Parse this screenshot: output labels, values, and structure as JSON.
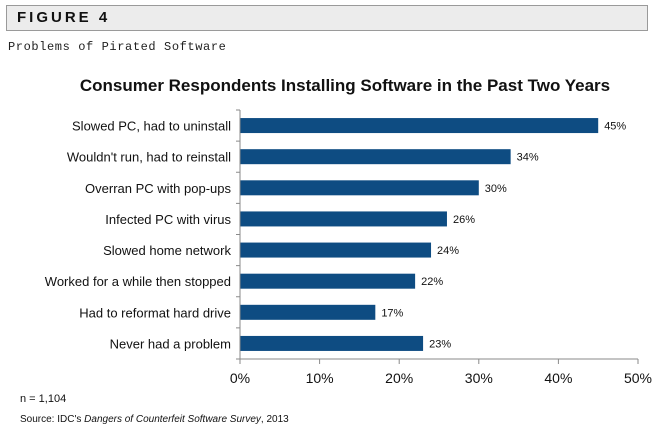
{
  "figure_label": "FIGURE 4",
  "figure_subtitle": "Problems of Pirated Software",
  "chart_data": {
    "type": "bar",
    "orientation": "horizontal",
    "title": "Consumer Respondents Installing Software in the Past Two Years",
    "categories": [
      "Slowed PC, had to uninstall",
      "Wouldn't run, had to reinstall",
      "Overran PC with pop-ups",
      "Infected PC with virus",
      "Slowed home network",
      "Worked for a while then stopped",
      "Had to reformat hard drive",
      "Never had a problem"
    ],
    "values": [
      45,
      34,
      30,
      26,
      24,
      22,
      17,
      23
    ],
    "value_labels": [
      "45%",
      "34%",
      "30%",
      "26%",
      "24%",
      "22%",
      "17%",
      "23%"
    ],
    "x_ticks": [
      0,
      10,
      20,
      30,
      40,
      50
    ],
    "x_tick_labels": [
      "0%",
      "10%",
      "20%",
      "30%",
      "40%",
      "50%"
    ],
    "xlim": [
      0,
      50
    ],
    "xlabel": "",
    "ylabel": "",
    "grid": false,
    "legend": "none",
    "bar_color": "#0e4c82"
  },
  "footnotes": {
    "sample_size": "n = 1,104",
    "source_prefix": "Source: IDC's ",
    "source_title": "Dangers of Counterfeit Software Survey",
    "source_suffix": ", 2013"
  }
}
